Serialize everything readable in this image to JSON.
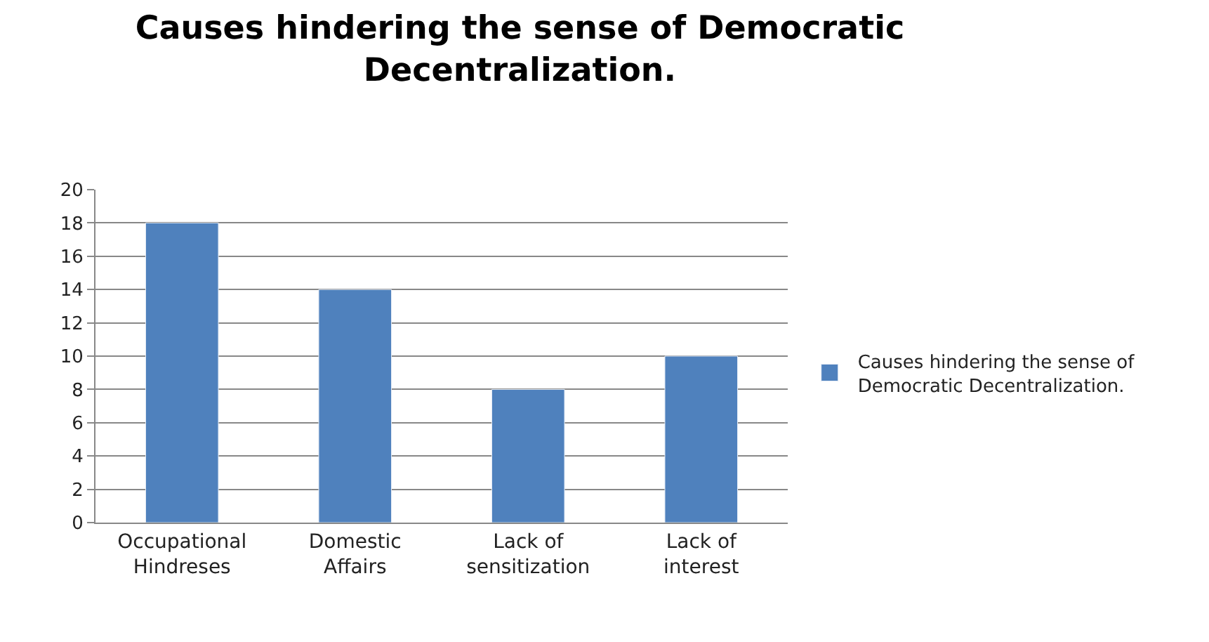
{
  "chart_data": {
    "type": "bar",
    "title": "Causes hindering the sense of Democratic\nDecentralization.",
    "categories": [
      "Occupational\nHindreses",
      "Domestic\nAffairs",
      "Lack of\nsensitization",
      "Lack of\ninterest"
    ],
    "series": [
      {
        "name": "Causes hindering the sense of\nDemocratic Decentralization.",
        "color": "#4f81bd",
        "values": [
          18,
          14,
          8,
          10
        ]
      }
    ],
    "ylim": [
      0,
      20
    ],
    "yticks": [
      0,
      2,
      4,
      6,
      8,
      10,
      12,
      14,
      16,
      18,
      20
    ],
    "grid": "y",
    "legend": "right"
  }
}
